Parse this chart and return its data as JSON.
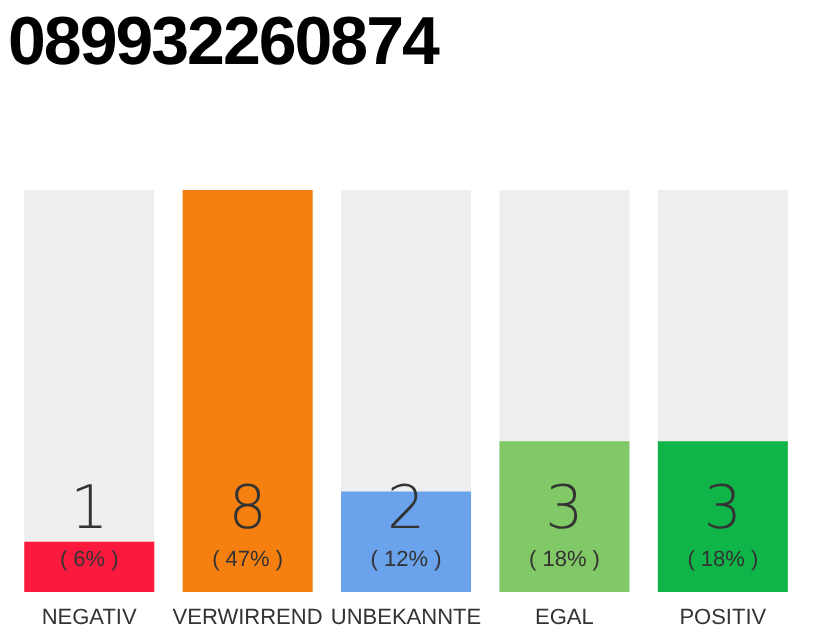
{
  "chart_data": {
    "type": "bar",
    "title": "089932260874",
    "categories": [
      "NEGATIV",
      "VERWIRREND",
      "UNBEKANNTE",
      "EGAL",
      "POSITIV"
    ],
    "values": [
      1,
      8,
      2,
      3,
      3
    ],
    "colors": [
      "#fb1a3e",
      "#f57f0f",
      "#6aa2ec",
      "#80c966",
      "#0fb548"
    ],
    "data_labels": true,
    "annotations": [
      "( 6% )",
      "( 47% )",
      "( 12% )",
      "( 18% )",
      "( 18% )"
    ]
  }
}
